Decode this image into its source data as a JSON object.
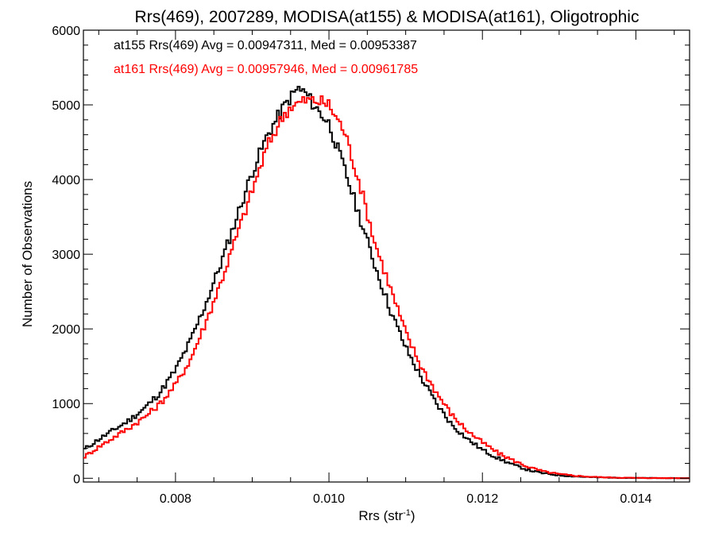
{
  "chart_data": {
    "type": "histogram",
    "title": "Rrs(469), 2007289, MODISA(at155) & MODISA(at161), Oligotrophic",
    "xlabel": "Rrs (str",
    "xlabel_sup": "-1",
    "xlabel_close": ")",
    "ylabel": "Number of Observations",
    "xlim": [
      0.0068,
      0.0147
    ],
    "ylim": [
      -50,
      6000
    ],
    "x_ticks": [
      0.008,
      0.01,
      0.012,
      0.014
    ],
    "x_tick_labels": [
      "0.008",
      "0.010",
      "0.012",
      "0.014"
    ],
    "y_ticks": [
      0,
      1000,
      2000,
      3000,
      4000,
      5000,
      6000
    ],
    "y_tick_labels": [
      "0",
      "1000",
      "2000",
      "3000",
      "4000",
      "5000",
      "6000"
    ],
    "grid": false,
    "colors": {
      "at155": "#000000",
      "at161": "#ff0000"
    },
    "series": [
      {
        "name": "at155",
        "color": "#000000",
        "x": [
          0.0068,
          0.007,
          0.0072,
          0.0074,
          0.0076,
          0.0078,
          0.008,
          0.0082,
          0.0084,
          0.0086,
          0.0088,
          0.009,
          0.0092,
          0.0094,
          0.0095,
          0.0096,
          0.0097,
          0.0098,
          0.01,
          0.0102,
          0.0104,
          0.0106,
          0.0108,
          0.011,
          0.0112,
          0.0114,
          0.0116,
          0.0118,
          0.012,
          0.0122,
          0.0124,
          0.0126,
          0.0128,
          0.013,
          0.0132,
          0.0134,
          0.0136,
          0.0138,
          0.014,
          0.0142,
          0.0144,
          0.0147
        ],
        "values": [
          380,
          520,
          650,
          780,
          940,
          1150,
          1450,
          1850,
          2350,
          2900,
          3500,
          4100,
          4600,
          4950,
          5100,
          5220,
          5150,
          5000,
          4750,
          4150,
          3500,
          2850,
          2250,
          1750,
          1350,
          1000,
          720,
          530,
          380,
          270,
          180,
          110,
          65,
          40,
          25,
          15,
          10,
          6,
          4,
          3,
          2,
          1
        ]
      },
      {
        "name": "at161",
        "color": "#ff0000",
        "x": [
          0.0068,
          0.007,
          0.0072,
          0.0074,
          0.0076,
          0.0078,
          0.008,
          0.0082,
          0.0084,
          0.0086,
          0.0088,
          0.009,
          0.0092,
          0.0094,
          0.0095,
          0.0096,
          0.0097,
          0.0098,
          0.0099,
          0.01,
          0.0102,
          0.0104,
          0.0106,
          0.0108,
          0.011,
          0.0112,
          0.0114,
          0.0116,
          0.0118,
          0.012,
          0.0122,
          0.0124,
          0.0126,
          0.0128,
          0.013,
          0.0132,
          0.0134,
          0.0136,
          0.0138,
          0.014,
          0.0142,
          0.0144,
          0.0147
        ],
        "values": [
          280,
          420,
          550,
          680,
          820,
          1000,
          1250,
          1600,
          2100,
          2650,
          3250,
          3850,
          4450,
          4850,
          4980,
          5020,
          5060,
          5060,
          5040,
          5000,
          4650,
          3950,
          3150,
          2550,
          1950,
          1500,
          1150,
          850,
          640,
          480,
          340,
          240,
          150,
          90,
          55,
          35,
          20,
          12,
          8,
          5,
          3,
          2,
          1
        ]
      }
    ],
    "annotations": [
      {
        "text": "at155 Rrs(469) Avg = 0.00947311, Med = 0.00953387",
        "color": "#000000"
      },
      {
        "text": "at161 Rrs(469) Avg = 0.00957946, Med = 0.00961785",
        "color": "#ff0000"
      }
    ]
  }
}
